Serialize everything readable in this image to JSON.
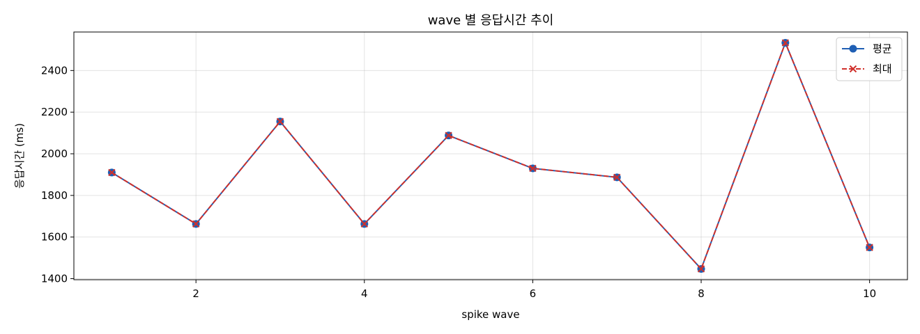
{
  "chart_data": {
    "type": "line",
    "title": "wave 별 응답시간 추이",
    "xlabel": "spike wave",
    "ylabel": "응답시간 (ms)",
    "x": [
      1,
      2,
      3,
      4,
      5,
      6,
      7,
      8,
      9,
      10
    ],
    "xticks": [
      2,
      4,
      6,
      8,
      10
    ],
    "yticks": [
      1400,
      1600,
      1800,
      2000,
      2200,
      2400
    ],
    "xlim": [
      0.55,
      10.45
    ],
    "ylim": [
      1395,
      2585
    ],
    "grid": true,
    "legend_position": "top-right",
    "series": [
      {
        "name": "평균",
        "values": [
          1910,
          1663,
          2155,
          1663,
          2088,
          1930,
          1887,
          1447,
          2533,
          1550
        ],
        "color": "#1f5fb4",
        "marker": "circle",
        "line_style": "solid"
      },
      {
        "name": "최대",
        "values": [
          1910,
          1663,
          2155,
          1663,
          2088,
          1930,
          1887,
          1447,
          2533,
          1550
        ],
        "color": "#d0302b",
        "marker": "x",
        "line_style": "dashed"
      }
    ]
  }
}
